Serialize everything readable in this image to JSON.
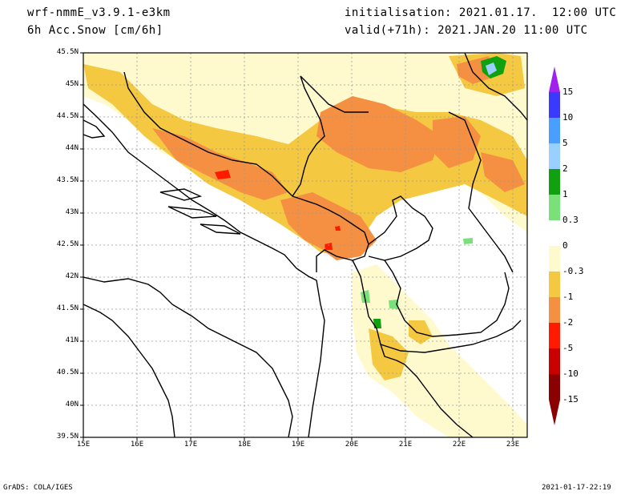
{
  "header": {
    "model": "wrf-nmmE_v3.9.1-e3km",
    "field": "6h Acc.Snow [cm/6h]",
    "init": "initialisation: 2021.01.17.  12:00 UTC",
    "valid": "valid(+71h): 2021.JAN.20 11:00 UTC"
  },
  "footer": {
    "credit": "GrADS: COLA/IGES",
    "timestamp": "2021-01-17-22:19"
  },
  "axes": {
    "lat_ticks": [
      "45.5N",
      "45N",
      "44.5N",
      "44N",
      "43.5N",
      "43N",
      "42.5N",
      "42N",
      "41.5N",
      "41N",
      "40.5N",
      "40N",
      "39.5N"
    ],
    "lon_ticks": [
      "15E",
      "16E",
      "17E",
      "18E",
      "19E",
      "20E",
      "21E",
      "22E",
      "23E"
    ],
    "lat_range": [
      39.5,
      45.5
    ],
    "lon_range": [
      15,
      23.3
    ]
  },
  "colorbar": {
    "labels": [
      "15",
      "10",
      "5",
      "2",
      "1",
      "0.3",
      "0",
      "-0.3",
      "-1",
      "-2",
      "-5",
      "-10",
      "-15"
    ],
    "colors": [
      "#a020f0",
      "#3a3aff",
      "#4a9eff",
      "#9ad0ff",
      "#10a010",
      "#7ae07a",
      "#ffffff",
      "#fffacd",
      "#f5c842",
      "#f59042",
      "#ff1a00",
      "#c80000",
      "#8b0000"
    ],
    "top_arrow_color": "#a020f0",
    "bottom_arrow_color": "#8b0000"
  }
}
